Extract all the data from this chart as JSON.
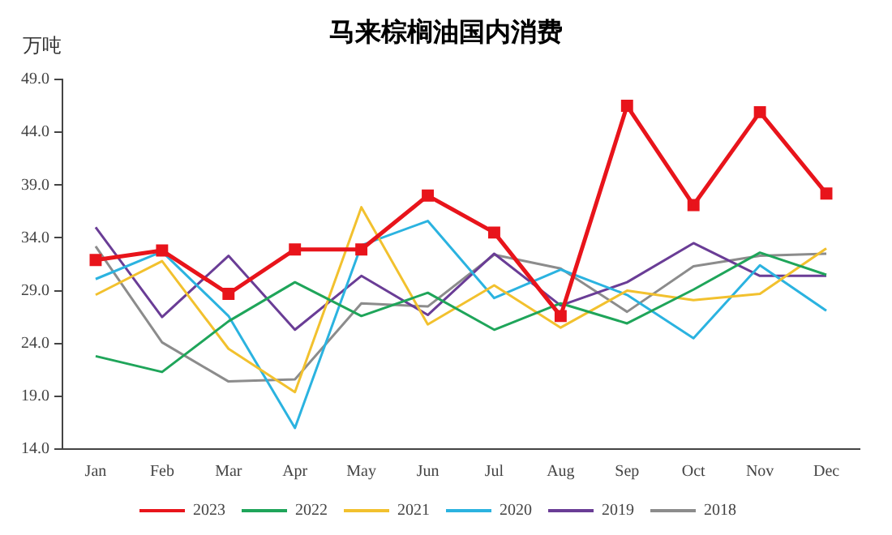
{
  "chart_data": {
    "type": "line",
    "title": "马来棕榈油国内消费",
    "ylabel": "万吨",
    "categories": [
      "Jan",
      "Feb",
      "Mar",
      "Apr",
      "May",
      "Jun",
      "Jul",
      "Aug",
      "Sep",
      "Oct",
      "Nov",
      "Dec"
    ],
    "ylim": [
      14,
      49
    ],
    "yticks": [
      {
        "value": 14,
        "label": "14.0"
      },
      {
        "value": 19,
        "label": "19.0"
      },
      {
        "value": 24,
        "label": "24.0"
      },
      {
        "value": 29,
        "label": "29.0"
      },
      {
        "value": 34,
        "label": "34.0"
      },
      {
        "value": 39,
        "label": "39.0"
      },
      {
        "value": 44,
        "label": "44.0"
      },
      {
        "value": 49,
        "label": "49.0"
      }
    ],
    "grid": false,
    "legend": "bottom",
    "marker": "none",
    "series": [
      {
        "name": "2023",
        "color": "#e8141b",
        "marker": "square",
        "values": [
          31.9,
          32.8,
          28.7,
          32.9,
          32.9,
          38.0,
          34.5,
          26.6,
          46.5,
          37.1,
          45.9,
          38.2
        ]
      },
      {
        "name": "2022",
        "color": "#1fa55a",
        "values": [
          22.8,
          21.3,
          26.1,
          29.8,
          26.6,
          28.8,
          25.3,
          27.8,
          25.9,
          29.1,
          32.6,
          30.5
        ]
      },
      {
        "name": "2021",
        "color": "#f2c12e",
        "values": [
          28.6,
          31.8,
          23.5,
          19.4,
          36.9,
          25.8,
          29.5,
          25.5,
          29.0,
          28.1,
          28.7,
          33.0
        ]
      },
      {
        "name": "2020",
        "color": "#2bb3e0",
        "values": [
          30.1,
          32.7,
          26.6,
          16.0,
          33.3,
          35.6,
          28.3,
          31.0,
          28.6,
          24.5,
          31.4,
          27.1
        ]
      },
      {
        "name": "2019",
        "color": "#6a3d96",
        "values": [
          35.0,
          26.5,
          32.3,
          25.3,
          30.4,
          26.7,
          32.5,
          27.6,
          29.8,
          33.5,
          30.4,
          30.4
        ]
      },
      {
        "name": "2018",
        "color": "#8c8c8c",
        "values": [
          33.2,
          24.1,
          20.4,
          20.6,
          27.8,
          27.5,
          32.4,
          31.1,
          27.0,
          31.3,
          32.3,
          32.5
        ]
      }
    ]
  }
}
